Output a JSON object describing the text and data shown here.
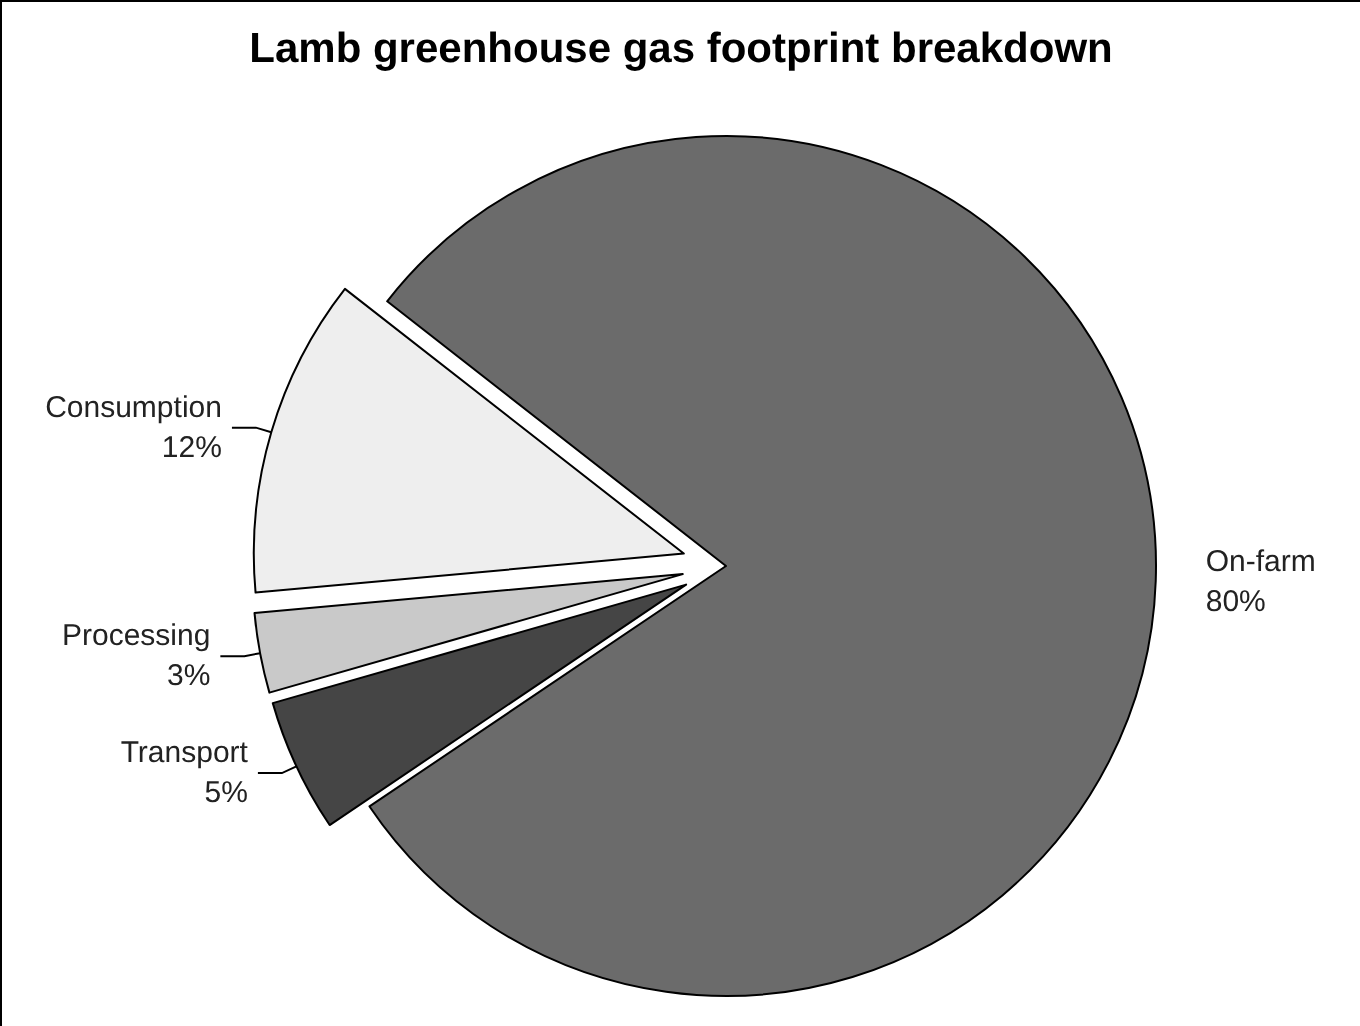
{
  "chart_data": {
    "type": "pie",
    "title": "Lamb greenhouse gas footprint breakdown",
    "categories": [
      "On-farm",
      "Transport",
      "Processing",
      "Consumption"
    ],
    "values": [
      80,
      5,
      3,
      12
    ],
    "colors": [
      "#6b6b6b",
      "#454545",
      "#c9c9c9",
      "#eeeeee"
    ],
    "value_labels": [
      "80%",
      "5%",
      "3%",
      "12%"
    ]
  }
}
